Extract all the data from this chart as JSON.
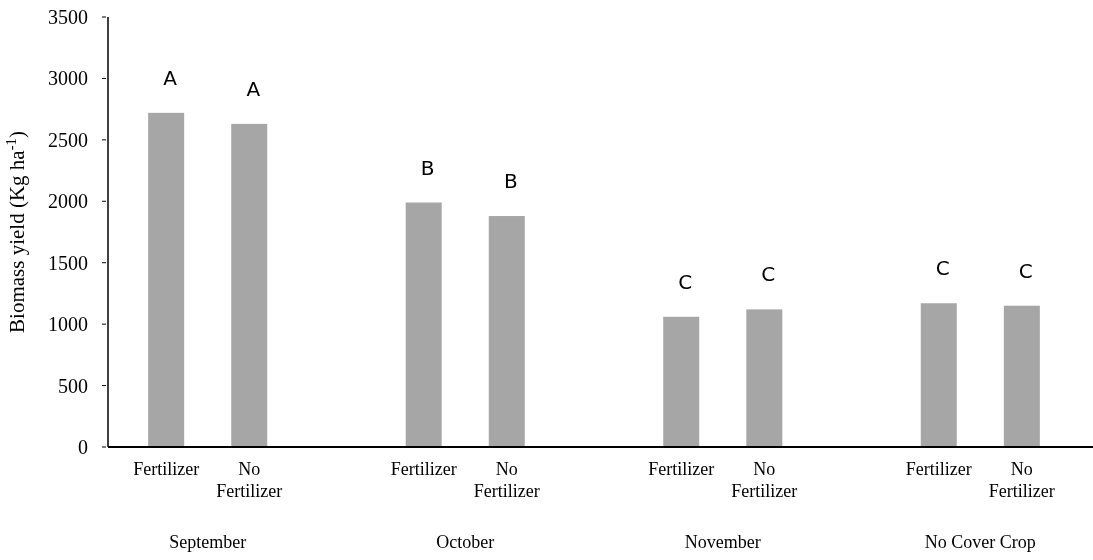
{
  "chart_data": {
    "type": "bar",
    "ylabel": "Biomass yield (Kg ha$^{-1}$)",
    "categories": [
      "Fertilizer",
      "No Fertilizer",
      "Fertilizer",
      "No Fertilizer",
      "Fertilizer",
      "No Fertilizer",
      "Fertilizer",
      "No Fertilizer"
    ],
    "values": [
      2720,
      2630,
      1990,
      1880,
      1060,
      1120,
      1170,
      1150
    ],
    "color": "#a6a6a6",
    "ylim": [
      0,
      3500
    ],
    "yticks": [
      0,
      500,
      1000,
      1500,
      2000,
      2500,
      3000,
      3500
    ],
    "grid": false,
    "annotations": [
      "A",
      "A",
      "B",
      "B",
      "C",
      "C",
      "C",
      "C",
      "September",
      "October",
      "November",
      "No Cover Crop"
    ]
  }
}
